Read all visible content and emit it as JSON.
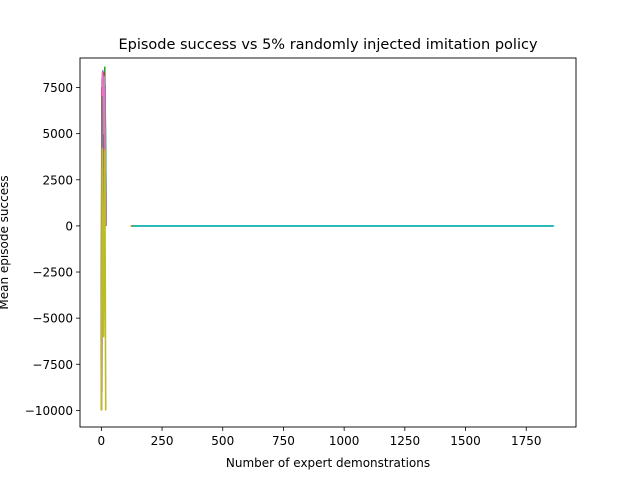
{
  "chart_data": {
    "type": "line",
    "title": "Episode success vs 5% randomly injected imitation policy",
    "xlabel": "Number of expert demonstrations",
    "ylabel": "Mean episode success",
    "xlim": [
      -88,
      1955
    ],
    "ylim": [
      -10900,
      9100
    ],
    "xticks": [
      0,
      250,
      500,
      750,
      1000,
      1250,
      1500,
      1750
    ],
    "xtick_labels": [
      "0",
      "250",
      "500",
      "750",
      "1000",
      "1250",
      "1500",
      "1750"
    ],
    "yticks": [
      -10000,
      -7500,
      -5000,
      -2500,
      0,
      2500,
      5000,
      7500
    ],
    "ytick_labels": [
      "−10000",
      "−7500",
      "−5000",
      "−2500",
      "0",
      "2500",
      "5000",
      "7500"
    ],
    "grid": false,
    "series": [
      {
        "color": "#1f77b4",
        "x": [
          0,
          3,
          6,
          10,
          15,
          20
        ],
        "y": [
          -9800,
          8000,
          -2000,
          4000,
          7600,
          0
        ]
      },
      {
        "color": "#ff7f0e",
        "x": [
          0,
          4,
          8,
          12,
          18
        ],
        "y": [
          -10000,
          8200,
          3000,
          6000,
          0
        ]
      },
      {
        "color": "#2ca02c",
        "x": [
          1,
          5,
          9,
          14,
          20
        ],
        "y": [
          -9500,
          7800,
          -1000,
          8600,
          0
        ]
      },
      {
        "color": "#d62728",
        "x": [
          0,
          2,
          7,
          11,
          17
        ],
        "y": [
          -8000,
          7500,
          500,
          8300,
          0
        ]
      },
      {
        "color": "#9467bd",
        "x": [
          2,
          6,
          10,
          16
        ],
        "y": [
          -9000,
          8400,
          2000,
          7400
        ]
      },
      {
        "color": "#8c564b",
        "x": [
          0,
          5,
          9,
          13
        ],
        "y": [
          -10000,
          6500,
          -3000,
          0
        ]
      },
      {
        "color": "#e377c2",
        "x": [
          1,
          4,
          8,
          12,
          19
        ],
        "y": [
          -9700,
          8300,
          5000,
          8100,
          0
        ]
      },
      {
        "color": "#7f7f7f",
        "x": [
          0,
          3,
          7,
          15
        ],
        "y": [
          -5000,
          7000,
          1000,
          0
        ]
      },
      {
        "color": "#bcbd22",
        "x": [
          0,
          4,
          9,
          14,
          18
        ],
        "y": [
          -10000,
          4200,
          -6000,
          4100,
          -10000
        ]
      },
      {
        "color": "#ff7f0e",
        "x": [
          120,
          400,
          800,
          1200,
          1600,
          1860
        ],
        "y": [
          0,
          0,
          0,
          0,
          0,
          0
        ]
      },
      {
        "color": "#2ca02c",
        "x": [
          125,
          500,
          900,
          1300,
          1700,
          1860
        ],
        "y": [
          0,
          0,
          0,
          0,
          0,
          0
        ]
      },
      {
        "color": "#17becf",
        "x": [
          130,
          450,
          850,
          1250,
          1650,
          1865
        ],
        "y": [
          0,
          0,
          0,
          0,
          0,
          0
        ]
      }
    ]
  }
}
